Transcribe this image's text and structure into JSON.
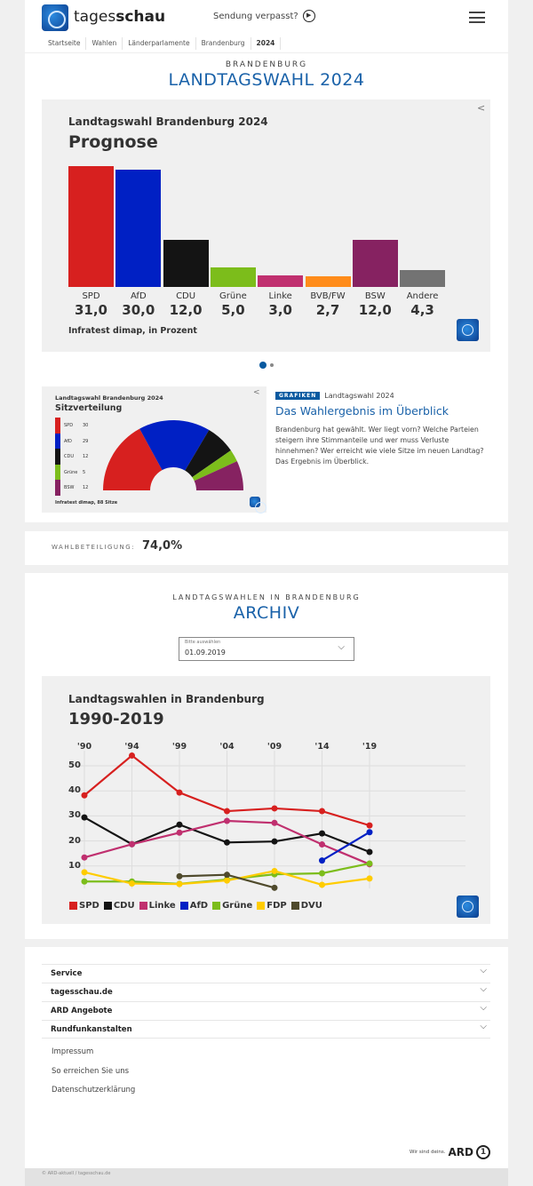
{
  "header": {
    "brand_light": "tages",
    "brand_bold": "schau",
    "sendung": "Sendung verpasst?"
  },
  "breadcrumb": [
    "Startseite",
    "Wahlen",
    "Länderparlamente",
    "Brandenburg",
    "2024"
  ],
  "section1": {
    "kicker": "BRANDENBURG",
    "title": "LANDTAGSWAHL 2024"
  },
  "chart_data": [
    {
      "type": "bar",
      "title": "Landtagswahl Brandenburg 2024",
      "subtitle": "Prognose",
      "source": "Infratest dimap, in Prozent",
      "categories": [
        "SPD",
        "AfD",
        "CDU",
        "Grüne",
        "Linke",
        "BVB/FW",
        "BSW",
        "Andere"
      ],
      "values": [
        31.0,
        30.0,
        12.0,
        5.0,
        3.0,
        2.7,
        12.0,
        4.3
      ],
      "labels": [
        "31,0",
        "30,0",
        "12,0",
        "5,0",
        "3,0",
        "2,7",
        "12,0",
        "4,3"
      ],
      "colors": [
        "#d7201f",
        "#0020c4",
        "#141414",
        "#7cbd1b",
        "#c0306f",
        "#ff8c1a",
        "#862261",
        "#737373"
      ]
    },
    {
      "type": "pie",
      "title": "Landtagswahl Brandenburg 2024",
      "subtitle": "Sitzverteilung",
      "source": "Infratest dimap, 88 Sitze",
      "categories": [
        "SPD",
        "AfD",
        "CDU",
        "Grüne",
        "BSW"
      ],
      "values": [
        30,
        29,
        12,
        5,
        12
      ],
      "colors": [
        "#d7201f",
        "#0020c4",
        "#141414",
        "#7cbd1b",
        "#862261"
      ]
    },
    {
      "type": "line",
      "title": "Landtagswahlen in Brandenburg",
      "subtitle": "1990-2019",
      "categories": [
        "'90",
        "'94",
        "'99",
        "'04",
        "'09",
        "'14",
        "'19"
      ],
      "yticks": [
        10,
        20,
        30,
        40,
        50
      ],
      "ylim": [
        0,
        56
      ],
      "grid": true,
      "legend": "bottom",
      "series": [
        {
          "name": "SPD",
          "color": "#d7201f",
          "values": [
            38.2,
            54.1,
            39.3,
            31.9,
            33.0,
            31.9,
            26.2
          ]
        },
        {
          "name": "CDU",
          "color": "#141414",
          "values": [
            29.4,
            18.7,
            26.5,
            19.4,
            19.8,
            23.0,
            15.6
          ]
        },
        {
          "name": "Linke",
          "color": "#c0306f",
          "values": [
            13.4,
            18.7,
            23.3,
            28.0,
            27.2,
            18.6,
            10.7
          ]
        },
        {
          "name": "AfD",
          "color": "#0020c4",
          "values": [
            null,
            null,
            null,
            null,
            null,
            12.2,
            23.5
          ]
        },
        {
          "name": "Grüne",
          "color": "#7cbd1b",
          "values": [
            3.8,
            3.8,
            2.9,
            4.6,
            6.7,
            7.1,
            11.0
          ]
        },
        {
          "name": "FDP",
          "color": "#ffcc00",
          "values": [
            7.5,
            3.0,
            2.8,
            4.2,
            8.0,
            2.5,
            5.0
          ]
        },
        {
          "name": "DVU",
          "color": "#4f4a2c",
          "values": [
            null,
            null,
            5.9,
            6.5,
            1.3,
            null,
            null
          ]
        }
      ]
    }
  ],
  "teaser": {
    "tag": "GRAFIKEN",
    "topline": "Landtagswahl 2024",
    "title": "Das Wahlergebnis im Überblick",
    "text": "Brandenburg hat gewählt. Wer liegt vorn? Welche Parteien steigern ihre Stimmanteile und wer muss Verluste hinnehmen? Wer erreicht wie viele Sitze im neuen Landtag? Das Ergebnis im Überblick."
  },
  "turnout": {
    "label": "WAHLBETEILIGUNG:",
    "value": "74,0%"
  },
  "archive": {
    "kicker": "LANDTAGSWAHLEN IN BRANDENBURG",
    "title": "ARCHIV",
    "select_label": "Bitte auswählen",
    "select_value": "01.09.2019"
  },
  "footer": {
    "sections": [
      "Service",
      "tagesschau.de",
      "ARD Angebote",
      "Rundfunkanstalten"
    ],
    "links": [
      "Impressum",
      "So erreichen Sie uns",
      "Datenschutzerklärung"
    ],
    "slogan": "Wir sind deins.",
    "ard": "ARD",
    "copyright": "© ARD-aktuell / tagesschau.de"
  }
}
